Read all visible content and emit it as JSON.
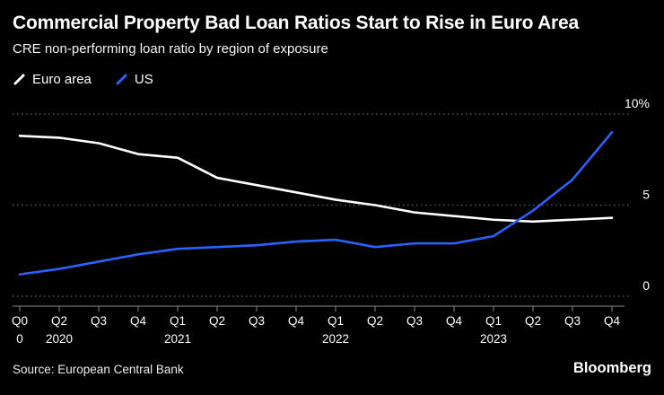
{
  "header": {
    "title": "Commercial Property Bad Loan Ratios Start to Rise in Euro Area",
    "subtitle": "CRE non-performing loan ratio by region of exposure"
  },
  "legend": [
    {
      "label": "Euro area",
      "color": "#ffffff"
    },
    {
      "label": "US",
      "color": "#2962ff"
    }
  ],
  "chart_data": {
    "type": "line",
    "title": "Commercial Property Bad Loan Ratios Start to Rise in Euro Area",
    "subtitle": "CRE non-performing loan ratio by region of exposure",
    "ylabel": "",
    "xlabel": "",
    "ylim": [
      0,
      10
    ],
    "grid": "dotted-horizontal",
    "legend_position": "top-left",
    "background_color": "#000000",
    "gridline_color": "#555555",
    "axis_color": "#888888",
    "x_quarter_labels": [
      "Q0",
      "Q2",
      "Q3",
      "Q4",
      "Q1",
      "Q2",
      "Q3",
      "Q4",
      "Q1",
      "Q2",
      "Q3",
      "Q4",
      "Q1",
      "Q2",
      "Q3",
      "Q4"
    ],
    "year_labels": [
      {
        "label": "0",
        "index": 0
      },
      {
        "label": "2020",
        "index": 1
      },
      {
        "label": "2021",
        "index": 4
      },
      {
        "label": "2022",
        "index": 8
      },
      {
        "label": "2023",
        "index": 12
      }
    ],
    "y_ticks": [
      {
        "label": "10%",
        "value": 10
      },
      {
        "label": "5",
        "value": 5
      },
      {
        "label": "0",
        "value": 0
      }
    ],
    "series": [
      {
        "name": "Euro area",
        "color": "#ffffff",
        "values": [
          8.8,
          8.7,
          8.4,
          7.8,
          7.6,
          6.5,
          6.1,
          5.7,
          5.3,
          5.0,
          4.6,
          4.4,
          4.2,
          4.1,
          4.2,
          4.3
        ]
      },
      {
        "name": "US",
        "color": "#2962ff",
        "values": [
          1.2,
          1.5,
          1.9,
          2.3,
          2.6,
          2.7,
          2.8,
          3.0,
          3.1,
          2.7,
          2.9,
          2.9,
          3.3,
          4.7,
          6.4,
          9.0
        ]
      }
    ]
  },
  "footer": {
    "source": "Source: European Central Bank",
    "brand": "Bloomberg"
  }
}
